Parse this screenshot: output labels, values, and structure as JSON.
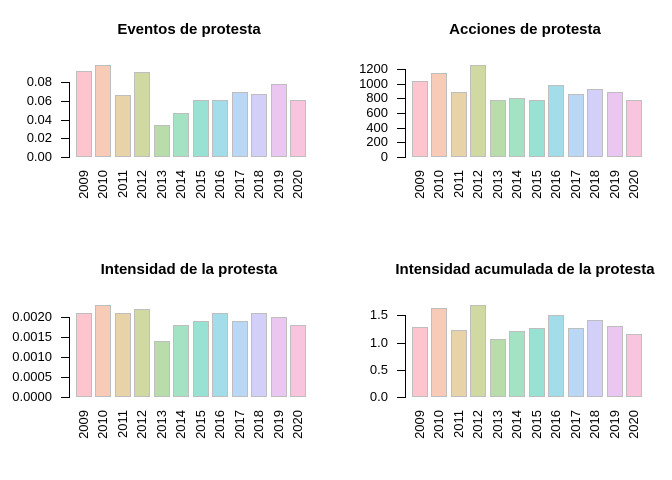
{
  "window": {
    "background": "#ffffff"
  },
  "palette": {
    "bar_border": "#bebebe",
    "axis_color": "#000000",
    "text_color": "#000000",
    "bar_colors": [
      "#ffc5ce",
      "#f7cbb7",
      "#e8d3a9",
      "#d1d9a3",
      "#b9dcab",
      "#a3e2c3",
      "#98e2d3",
      "#a4ddea",
      "#bad8f6",
      "#d2cff8",
      "#e9c7f0",
      "#f9c5de"
    ]
  },
  "chart_data": [
    {
      "type": "bar",
      "title": "Eventos de protesta",
      "categories": [
        "2009",
        "2010",
        "2011",
        "2012",
        "2013",
        "2014",
        "2015",
        "2016",
        "2017",
        "2018",
        "2019",
        "2020"
      ],
      "values": [
        0.092,
        0.099,
        0.066,
        0.091,
        0.034,
        0.047,
        0.061,
        0.061,
        0.07,
        0.067,
        0.078,
        0.061
      ],
      "ytick_values": [
        0,
        0.02,
        0.04,
        0.06,
        0.08
      ],
      "ytick_labels": [
        "0.00",
        "0.02",
        "0.04",
        "0.06",
        "0.08"
      ],
      "ylim": [
        0,
        0.099
      ],
      "grid": false,
      "legend_position": "none"
    },
    {
      "type": "bar",
      "title": "Acciones de protesta",
      "categories": [
        "2009",
        "2010",
        "2011",
        "2012",
        "2013",
        "2014",
        "2015",
        "2016",
        "2017",
        "2018",
        "2019",
        "2020"
      ],
      "values": [
        1030,
        1150,
        890,
        1260,
        770,
        805,
        770,
        985,
        860,
        920,
        890,
        780
      ],
      "ytick_values": [
        0,
        200,
        400,
        600,
        800,
        1000,
        1200
      ],
      "ytick_labels": [
        "0",
        "200",
        "400",
        "600",
        "800",
        "1000",
        "1200"
      ],
      "ylim": [
        0,
        1260
      ],
      "grid": false,
      "legend_position": "none"
    },
    {
      "type": "bar",
      "title": "Intensidad de la protesta",
      "categories": [
        "2009",
        "2010",
        "2011",
        "2012",
        "2013",
        "2014",
        "2015",
        "2016",
        "2017",
        "2018",
        "2019",
        "2020"
      ],
      "values": [
        0.0021,
        0.0023,
        0.0021,
        0.0022,
        0.0014,
        0.0018,
        0.0019,
        0.0021,
        0.0019,
        0.0021,
        0.002,
        0.0018
      ],
      "ytick_values": [
        0,
        0.0005,
        0.001,
        0.0015,
        0.002
      ],
      "ytick_labels": [
        "0.0000",
        "0.0005",
        "0.0010",
        "0.0015",
        "0.0020"
      ],
      "ylim": [
        0,
        0.0023
      ],
      "grid": false,
      "legend_position": "none"
    },
    {
      "type": "bar",
      "title": "Intensidad acumulada de la protesta",
      "categories": [
        "2009",
        "2010",
        "2011",
        "2012",
        "2013",
        "2014",
        "2015",
        "2016",
        "2017",
        "2018",
        "2019",
        "2020"
      ],
      "values": [
        1.29,
        1.63,
        1.24,
        1.7,
        1.07,
        1.22,
        1.26,
        1.51,
        1.26,
        1.42,
        1.31,
        1.16
      ],
      "ytick_values": [
        0,
        0.5,
        1.0,
        1.5
      ],
      "ytick_labels": [
        "0.0",
        "0.5",
        "1.0",
        "1.5"
      ],
      "ylim": [
        0,
        1.7
      ],
      "grid": false,
      "legend_position": "none"
    }
  ]
}
